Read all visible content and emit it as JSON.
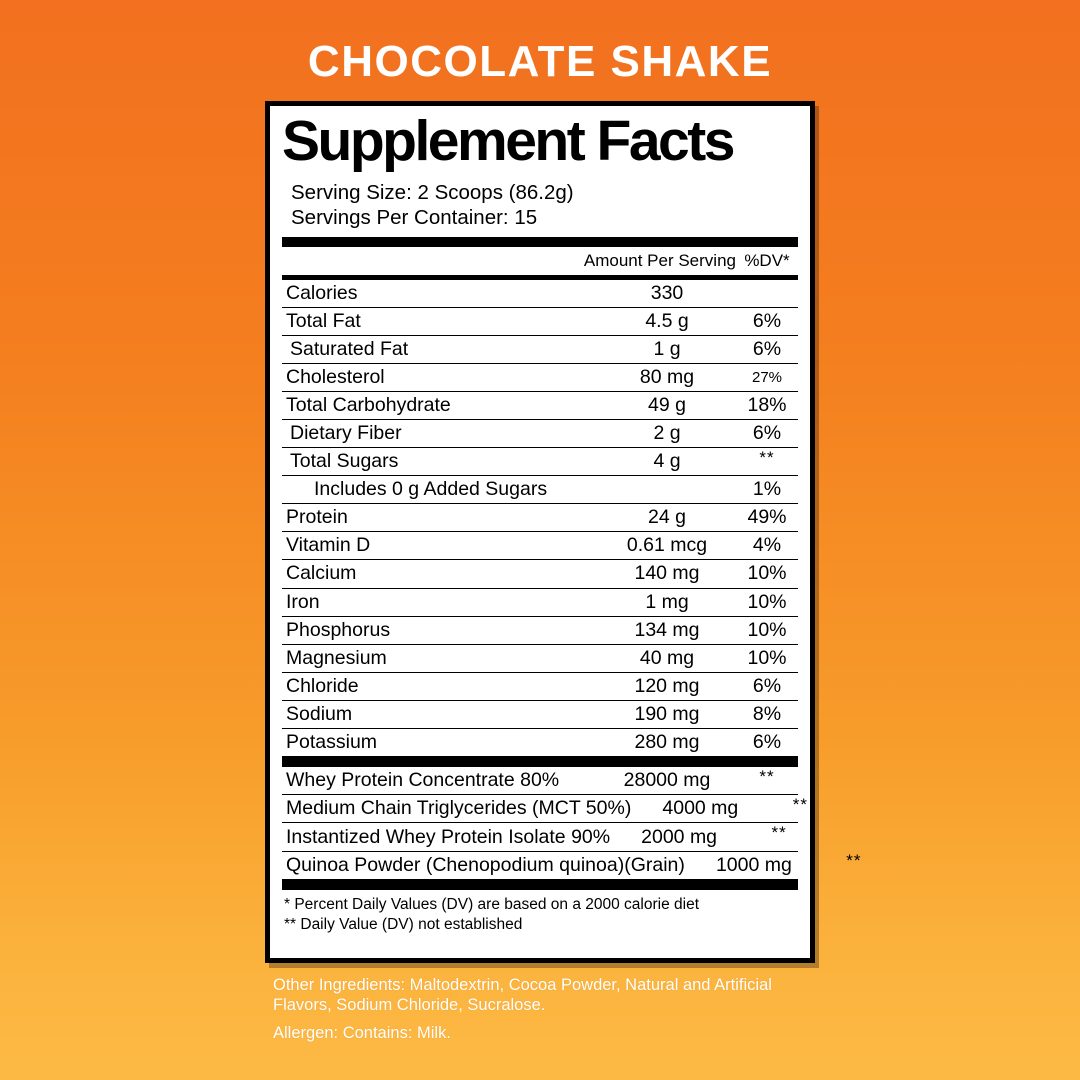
{
  "page": {
    "title": "CHOCOLATE SHAKE"
  },
  "colors": {
    "background_top": "#F2701F",
    "background_bottom": "#FCBA45",
    "panel_background": "#FFFFFF",
    "panel_border": "#000000",
    "title_text": "#FFFFFF"
  },
  "panel": {
    "heading": "Supplement Facts",
    "serving_size": "Serving Size: 2 Scoops (86.2g)",
    "servings_per_container": "Servings Per Container: 15",
    "columns": {
      "amount": "Amount Per Serving",
      "dv": "%DV*"
    },
    "rows": [
      {
        "label": "Calories",
        "amount": "330",
        "dv": "",
        "indent": 0
      },
      {
        "label": "Total Fat",
        "amount": "4.5 g",
        "dv": "6%",
        "indent": 0
      },
      {
        "label": "Saturated Fat",
        "amount": "1 g",
        "dv": "6%",
        "indent": 1
      },
      {
        "label": "Cholesterol",
        "amount": "80 mg",
        "dv": "27%",
        "indent": 0,
        "dv_small": true
      },
      {
        "label": "Total Carbohydrate",
        "amount": "49 g",
        "dv": "18%",
        "indent": 0
      },
      {
        "label": "Dietary Fiber",
        "amount": "2 g",
        "dv": "6%",
        "indent": 1
      },
      {
        "label": "Total Sugars",
        "amount": "4 g",
        "dv": "**",
        "indent": 1
      },
      {
        "label": "Includes 0 g Added Sugars",
        "amount": "",
        "dv": "1%",
        "indent": 2
      },
      {
        "label": "Protein",
        "amount": "24 g",
        "dv": "49%",
        "indent": 0
      },
      {
        "label": "Vitamin D",
        "amount": "0.61 mcg",
        "dv": "4%",
        "indent": 0
      },
      {
        "label": "Calcium",
        "amount": "140 mg",
        "dv": "10%",
        "indent": 0
      },
      {
        "label": "Iron",
        "amount": "1 mg",
        "dv": "10%",
        "indent": 0
      },
      {
        "label": "Phosphorus",
        "amount": "134 mg",
        "dv": "10%",
        "indent": 0
      },
      {
        "label": "Magnesium",
        "amount": "40 mg",
        "dv": "10%",
        "indent": 0
      },
      {
        "label": "Chloride",
        "amount": "120 mg",
        "dv": "6%",
        "indent": 0
      },
      {
        "label": "Sodium",
        "amount": "190 mg",
        "dv": "8%",
        "indent": 0
      },
      {
        "label": "Potassium",
        "amount": "280 mg",
        "dv": "6%",
        "indent": 0
      }
    ],
    "blend_rows": [
      {
        "label": "Whey Protein Concentrate 80%",
        "amount": "28000 mg",
        "dv": "**",
        "indent": 0
      },
      {
        "label": "Medium Chain Triglycerides (MCT 50%)",
        "amount": "4000 mg",
        "dv": "**",
        "indent": 0
      },
      {
        "label": "Instantized Whey Protein Isolate 90%",
        "amount": "2000 mg",
        "dv": "**",
        "indent": 0
      },
      {
        "label": "Quinoa Powder (Chenopodium quinoa)(Grain)",
        "amount": "1000 mg",
        "dv": "**",
        "indent": 0
      }
    ],
    "footnotes": [
      "* Percent Daily Values (DV) are based on a 2000 calorie diet",
      "** Daily Value (DV) not established"
    ]
  },
  "footer": {
    "other_ingredients": "Other Ingredients: Maltodextrin, Cocoa Powder, Natural and Artificial Flavors, Sodium Chloride, Sucralose.",
    "allergen": "Allergen: Contains: Milk."
  }
}
